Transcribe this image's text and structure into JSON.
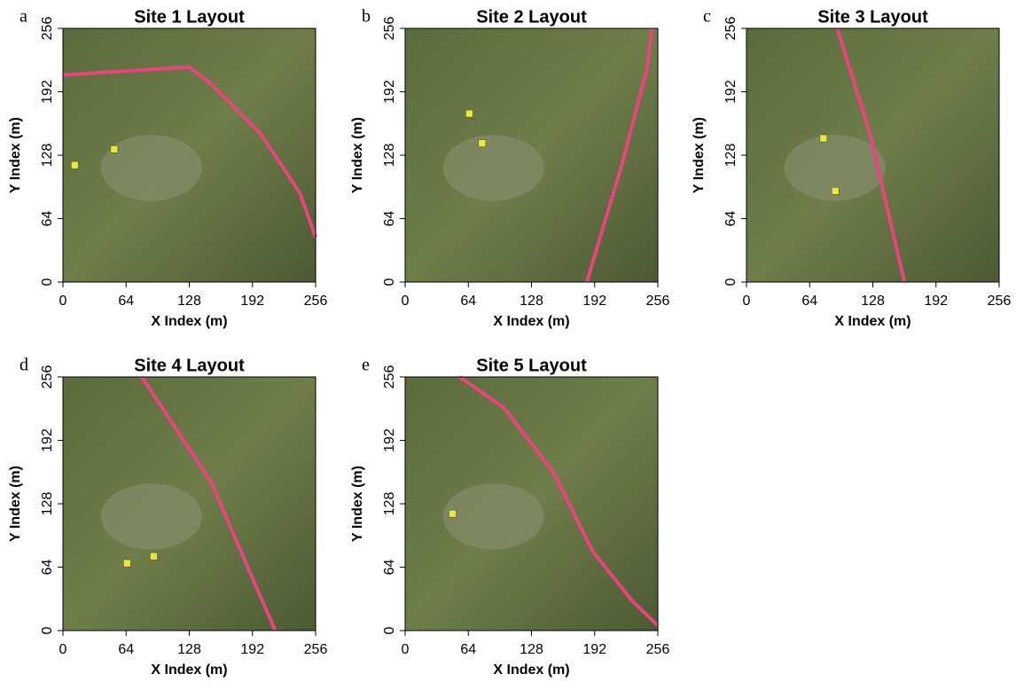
{
  "chart_data": [
    {
      "type": "map",
      "panel": "a",
      "title": "Site 1 Layout",
      "xlabel": "X Index (m)",
      "ylabel": "Y Index (m)",
      "xlim": [
        0,
        256
      ],
      "ylim": [
        0,
        256
      ],
      "xticks": [
        0,
        64,
        128,
        192,
        256
      ],
      "yticks": [
        0,
        64,
        128,
        192,
        256
      ],
      "line": {
        "color": "#e8457f",
        "x": [
          0,
          128,
          150,
          200,
          240,
          256
        ],
        "y": [
          209,
          217,
          200,
          150,
          90,
          45
        ]
      },
      "points": {
        "color": "#e8e83a",
        "x": [
          12,
          52
        ],
        "y": [
          118,
          134
        ]
      }
    },
    {
      "type": "map",
      "panel": "b",
      "title": "Site 2 Layout",
      "xlabel": "X Index (m)",
      "ylabel": "Y Index (m)",
      "xlim": [
        0,
        256
      ],
      "ylim": [
        0,
        256
      ],
      "xticks": [
        0,
        64,
        128,
        192,
        256
      ],
      "yticks": [
        0,
        64,
        128,
        192,
        256
      ],
      "line": {
        "color": "#e8457f",
        "x": [
          184,
          220,
          245,
          250
        ],
        "y": [
          0,
          120,
          215,
          256
        ]
      },
      "points": {
        "color": "#e8e83a",
        "x": [
          65,
          78
        ],
        "y": [
          170,
          140
        ]
      }
    },
    {
      "type": "map",
      "panel": "c",
      "title": "Site 3 Layout",
      "xlabel": "X Index (m)",
      "ylabel": "Y Index (m)",
      "xlim": [
        0,
        256
      ],
      "ylim": [
        0,
        256
      ],
      "xticks": [
        0,
        64,
        128,
        192,
        256
      ],
      "yticks": [
        0,
        64,
        128,
        192,
        256
      ],
      "line": {
        "color": "#e8457f",
        "x": [
          92,
          125,
          160
        ],
        "y": [
          256,
          150,
          0
        ]
      },
      "points": {
        "color": "#e8e83a",
        "x": [
          78,
          90
        ],
        "y": [
          145,
          92
        ]
      }
    },
    {
      "type": "map",
      "panel": "d",
      "title": "Site 4 Layout",
      "xlabel": "X Index (m)",
      "ylabel": "Y Index (m)",
      "xlim": [
        0,
        256
      ],
      "ylim": [
        0,
        256
      ],
      "xticks": [
        0,
        64,
        128,
        192,
        256
      ],
      "yticks": [
        0,
        64,
        128,
        192,
        256
      ],
      "line": {
        "color": "#e8457f",
        "x": [
          80,
          150,
          215
        ],
        "y": [
          256,
          150,
          0
        ]
      },
      "points": {
        "color": "#e8e83a",
        "x": [
          65,
          92
        ],
        "y": [
          68,
          75
        ]
      }
    },
    {
      "type": "map",
      "panel": "e",
      "title": "Site 5 Layout",
      "xlabel": "X Index (m)",
      "ylabel": "Y Index (m)",
      "xlim": [
        0,
        256
      ],
      "ylim": [
        0,
        256
      ],
      "xticks": [
        0,
        64,
        128,
        192,
        256
      ],
      "yticks": [
        0,
        64,
        128,
        192,
        256
      ],
      "line": {
        "color": "#e8457f",
        "x": [
          55,
          100,
          150,
          190,
          230,
          256
        ],
        "y": [
          256,
          225,
          160,
          80,
          30,
          5
        ]
      },
      "points": {
        "color": "#e8e83a",
        "x": [
          48
        ],
        "y": [
          118
        ]
      }
    }
  ]
}
